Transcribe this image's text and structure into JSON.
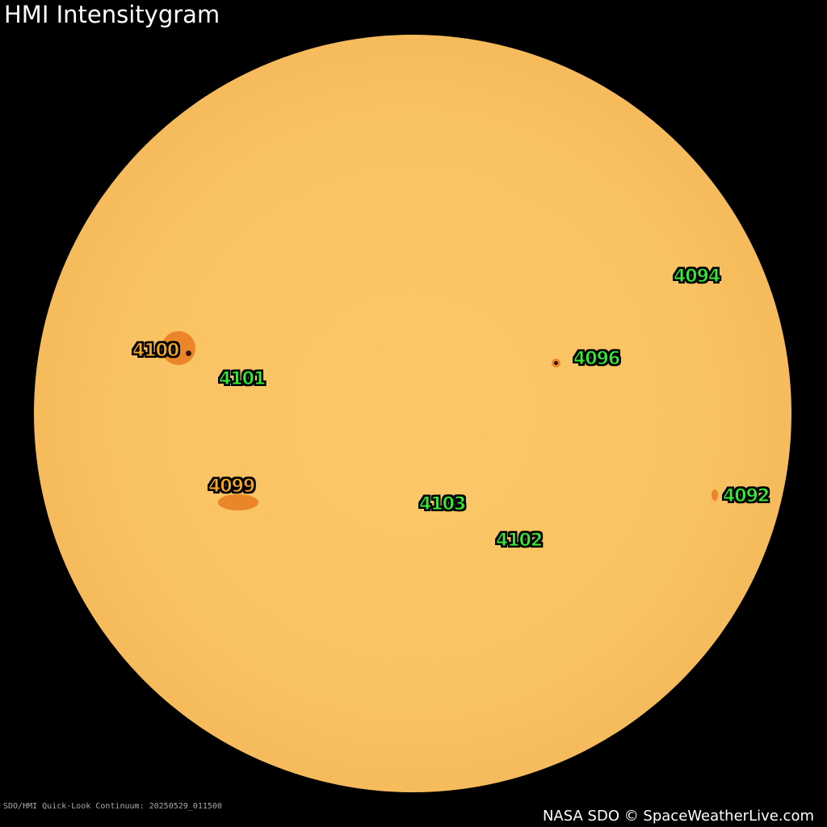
{
  "title": "HMI Intensitygram",
  "footer_left": "SDO/HMI Quick-Look Continuum: 20250529_011500",
  "footer_right": "NASA SDO © SpaceWeatherLive.com",
  "colors": {
    "sun": "#f9c262",
    "label_green": "#33ee33",
    "label_orange": "#f6a821"
  },
  "regions": [
    {
      "number": "4094",
      "color": "green"
    },
    {
      "number": "4100",
      "color": "orange"
    },
    {
      "number": "4096",
      "color": "green"
    },
    {
      "number": "4101",
      "color": "green"
    },
    {
      "number": "4099",
      "color": "orange"
    },
    {
      "number": "4103",
      "color": "green"
    },
    {
      "number": "4092",
      "color": "green"
    },
    {
      "number": "4102",
      "color": "green"
    }
  ]
}
